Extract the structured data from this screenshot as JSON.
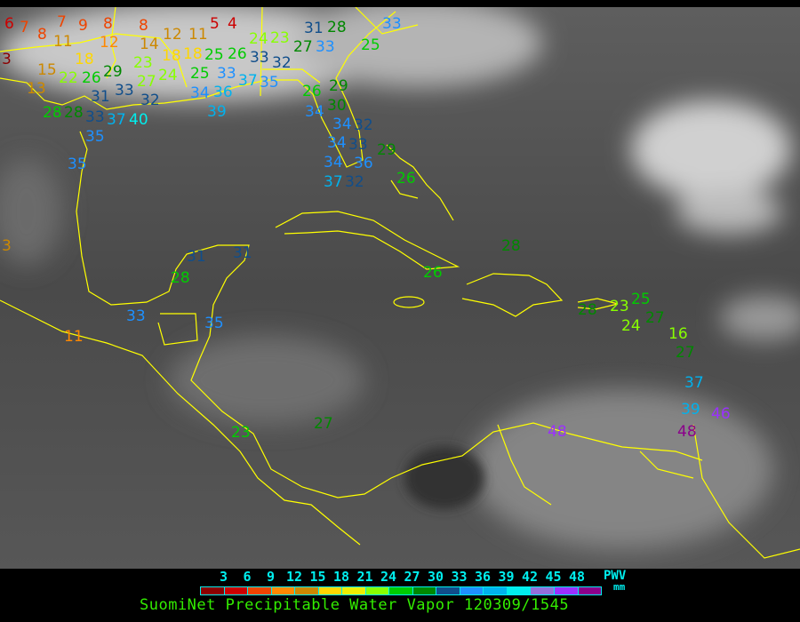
{
  "caption": "SuomiNet Precipitable Water Vapor 120309/1545",
  "legend": {
    "title": "PWV",
    "unit": "mm",
    "ticks": [
      "3",
      "6",
      "9",
      "12",
      "15",
      "18",
      "21",
      "24",
      "27",
      "30",
      "33",
      "36",
      "39",
      "42",
      "45",
      "48"
    ],
    "colors": [
      "#8b0000",
      "#cc0000",
      "#ee4400",
      "#ff8800",
      "#cc8800",
      "#ffd700",
      "#eeee00",
      "#88ff00",
      "#00cc00",
      "#008800",
      "#104e8b",
      "#1e90ff",
      "#00b2ee",
      "#00eeee",
      "#9370db",
      "#9b30ff",
      "#8b008b"
    ]
  },
  "map": {
    "coastline_color": "#ffff00",
    "station_values": [
      "6",
      "7",
      "8",
      "7",
      "9",
      "8",
      "8",
      "11",
      "12",
      "14",
      "12",
      "11",
      "5",
      "4",
      "3",
      "18",
      "15",
      "22",
      "26",
      "29",
      "23",
      "27",
      "13",
      "31",
      "33",
      "32",
      "24",
      "18",
      "18",
      "25",
      "25",
      "26",
      "33",
      "32",
      "24",
      "23",
      "27",
      "31",
      "33",
      "28",
      "25",
      "33",
      "33",
      "34",
      "36",
      "37",
      "35",
      "28",
      "28",
      "33",
      "37",
      "40",
      "39",
      "35",
      "35",
      "29",
      "26",
      "30",
      "34",
      "34",
      "34",
      "32",
      "33",
      "34",
      "36",
      "32",
      "37",
      "29",
      "26",
      "3",
      "28",
      "26",
      "31",
      "31",
      "28",
      "33",
      "35",
      "11",
      "23",
      "27",
      "28",
      "23",
      "25",
      "24",
      "27",
      "16",
      "27",
      "37",
      "39",
      "46",
      "48",
      "48"
    ],
    "station_colors": [
      "#cc0000",
      "#ee4400",
      "#ee4400",
      "#ee4400",
      "#ee4400",
      "#ee4400",
      "#ee4400",
      "#cc8800",
      "#ff8800",
      "#cc8800",
      "#cc8800",
      "#cc8800",
      "#cc0000",
      "#cc0000",
      "#8b0000",
      "#ffd700",
      "#cc8800",
      "#88ff00",
      "#00cc00",
      "#008800",
      "#88ff00",
      "#88ff00",
      "#cc8800",
      "#104e8b",
      "#104e8b",
      "#104e8b",
      "#88ff00",
      "#ffd700",
      "#ffd700",
      "#00cc00",
      "#00cc00",
      "#00cc00",
      "#104e8b",
      "#104e8b",
      "#88ff00",
      "#88ff00",
      "#008800",
      "#104e8b",
      "#1e90ff",
      "#008800",
      "#00cc00",
      "#1e90ff",
      "#1e90ff",
      "#1e90ff",
      "#00b2ee",
      "#00b2ee",
      "#1e90ff",
      "#00cc00",
      "#008800",
      "#104e8b",
      "#00b2ee",
      "#00eeee",
      "#00b2ee",
      "#1e90ff",
      "#1e90ff",
      "#008800",
      "#00cc00",
      "#008800",
      "#1e90ff",
      "#1e90ff",
      "#1e90ff",
      "#104e8b",
      "#104e8b",
      "#1e90ff",
      "#1e90ff",
      "#104e8b",
      "#00b2ee",
      "#008800",
      "#00cc00",
      "#cc8800",
      "#008800",
      "#00cc00",
      "#104e8b",
      "#104e8b",
      "#00cc00",
      "#1e90ff",
      "#1e90ff",
      "#ff8800",
      "#00cc00",
      "#008800",
      "#008800",
      "#88ff00",
      "#00cc00",
      "#88ff00",
      "#008800",
      "#88ff00",
      "#008800",
      "#00b2ee",
      "#00b2ee",
      "#9b30ff",
      "#8b008b",
      "#9b30ff"
    ]
  }
}
